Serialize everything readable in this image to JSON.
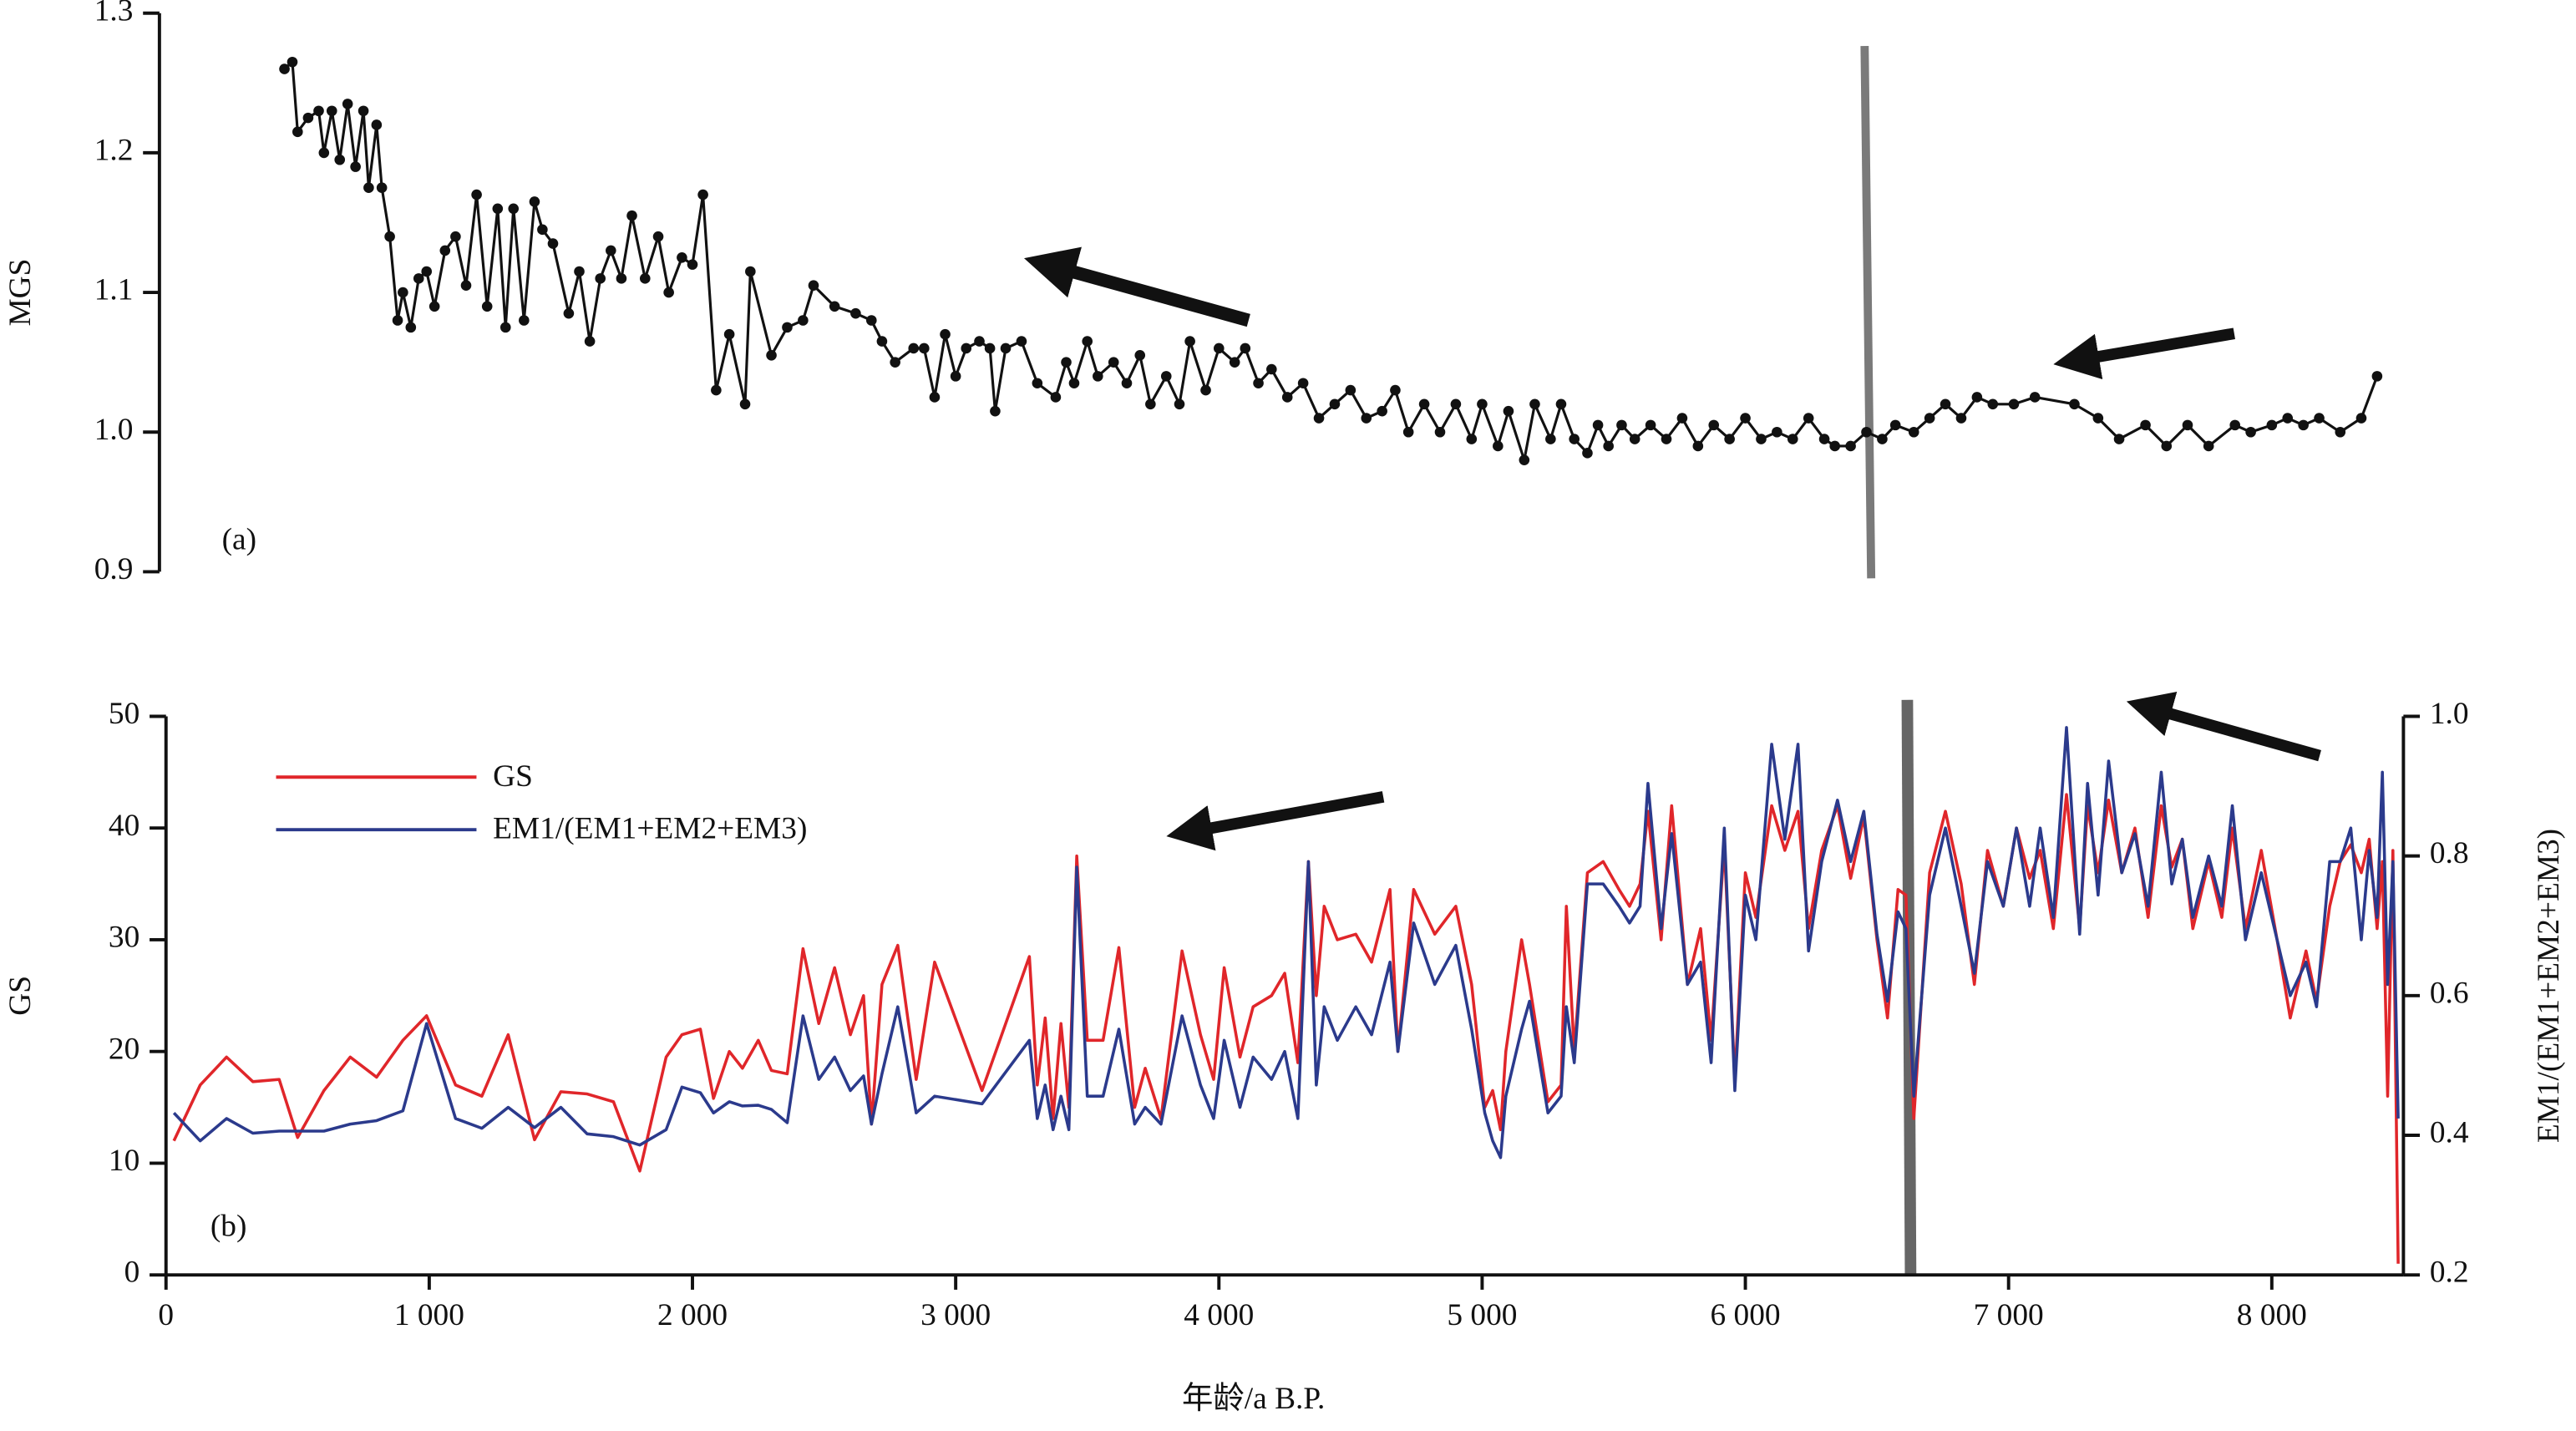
{
  "chart_data": [
    {
      "type": "line",
      "label": "(a)",
      "ylabel": "MGS",
      "xlim": [
        0,
        8500
      ],
      "ylim": [
        0.9,
        1.3
      ],
      "yticks": [
        0.9,
        {
          "value": 1,
          "label": "1.0"
        },
        1.1,
        1.2,
        1.3
      ],
      "x": [
        450,
        480,
        500,
        540,
        580,
        600,
        630,
        660,
        690,
        720,
        750,
        770,
        800,
        820,
        850,
        880,
        900,
        930,
        960,
        990,
        1020,
        1060,
        1100,
        1140,
        1180,
        1220,
        1260,
        1290,
        1320,
        1360,
        1400,
        1430,
        1470,
        1530,
        1570,
        1610,
        1650,
        1690,
        1730,
        1770,
        1820,
        1870,
        1910,
        1960,
        2000,
        2040,
        2090,
        2140,
        2200,
        2220,
        2300,
        2360,
        2420,
        2460,
        2540,
        2620,
        2680,
        2720,
        2770,
        2840,
        2880,
        2920,
        2960,
        3000,
        3040,
        3090,
        3130,
        3150,
        3190,
        3250,
        3310,
        3380,
        3420,
        3450,
        3500,
        3540,
        3600,
        3650,
        3700,
        3740,
        3800,
        3850,
        3890,
        3950,
        4000,
        4060,
        4100,
        4150,
        4200,
        4260,
        4320,
        4380,
        4440,
        4500,
        4560,
        4620,
        4670,
        4720,
        4780,
        4840,
        4900,
        4960,
        5000,
        5060,
        5100,
        5160,
        5200,
        5260,
        5300,
        5350,
        5400,
        5440,
        5480,
        5530,
        5580,
        5640,
        5700,
        5760,
        5820,
        5880,
        5940,
        6000,
        6060,
        6120,
        6180,
        6240,
        6300,
        6340,
        6400,
        6460,
        6520,
        6570,
        6640,
        6700,
        6760,
        6820,
        6880,
        6940,
        7020,
        7100,
        7250,
        7340,
        7420,
        7520,
        7600,
        7680,
        7760,
        7860,
        7920,
        8000,
        8060,
        8120,
        8180,
        8260,
        8340,
        8400
      ],
      "series": [
        {
          "color": "#111111",
          "markers": true,
          "values": [
            1.26,
            1.265,
            1.215,
            1.225,
            1.23,
            1.2,
            1.23,
            1.195,
            1.235,
            1.19,
            1.23,
            1.175,
            1.22,
            1.175,
            1.14,
            1.08,
            1.1,
            1.075,
            1.11,
            1.115,
            1.09,
            1.13,
            1.14,
            1.105,
            1.17,
            1.09,
            1.16,
            1.075,
            1.16,
            1.08,
            1.165,
            1.145,
            1.135,
            1.085,
            1.115,
            1.065,
            1.11,
            1.13,
            1.11,
            1.155,
            1.11,
            1.14,
            1.1,
            1.125,
            1.12,
            1.17,
            1.03,
            1.07,
            1.02,
            1.115,
            1.055,
            1.075,
            1.08,
            1.105,
            1.09,
            1.085,
            1.08,
            1.065,
            1.05,
            1.06,
            1.06,
            1.025,
            1.07,
            1.04,
            1.06,
            1.065,
            1.06,
            1.015,
            1.06,
            1.065,
            1.035,
            1.025,
            1.05,
            1.035,
            1.065,
            1.04,
            1.05,
            1.035,
            1.055,
            1.02,
            1.04,
            1.02,
            1.065,
            1.03,
            1.06,
            1.05,
            1.06,
            1.035,
            1.045,
            1.025,
            1.035,
            1.01,
            1.02,
            1.03,
            1.01,
            1.015,
            1.03,
            1.0,
            1.02,
            1.0,
            1.02,
            0.995,
            1.02,
            0.99,
            1.015,
            0.98,
            1.02,
            0.995,
            1.02,
            0.995,
            0.985,
            1.005,
            0.99,
            1.005,
            0.995,
            1.005,
            0.995,
            1.01,
            0.99,
            1.005,
            0.995,
            1.01,
            0.995,
            1.0,
            0.995,
            1.01,
            0.995,
            0.99,
            0.99,
            1.0,
            0.995,
            1.005,
            1.0,
            1.01,
            1.02,
            1.01,
            1.025,
            1.02,
            1.02,
            1.025,
            1.02,
            1.01,
            0.995,
            1.005,
            0.99,
            1.005,
            0.99,
            1.005,
            1.0,
            1.005,
            1.01,
            1.005,
            1.01,
            1.0,
            1.01,
            1.04
          ]
        }
      ]
    },
    {
      "type": "line",
      "label": "(b)",
      "xlabel": "年龄/a B.P.",
      "ylabel": "GS",
      "y2label": "EM1/(EM1+EM2+EM3)",
      "xlim": [
        0,
        8500
      ],
      "xticks": [
        0,
        {
          "value": 1000,
          "label": "1 000"
        },
        {
          "value": 2000,
          "label": "2 000"
        },
        {
          "value": 3000,
          "label": "3 000"
        },
        {
          "value": 4000,
          "label": "4 000"
        },
        {
          "value": 5000,
          "label": "5 000"
        },
        {
          "value": 6000,
          "label": "6 000"
        },
        {
          "value": 7000,
          "label": "7 000"
        },
        {
          "value": 8000,
          "label": "8 000"
        }
      ],
      "ylim": [
        0,
        50
      ],
      "yticks": [
        0,
        10,
        20,
        30,
        40,
        50
      ],
      "y2lim": [
        0.2,
        1.0
      ],
      "y2ticks": [
        0.2,
        0.4,
        0.6,
        0.8,
        {
          "value": 1,
          "label": "1.0"
        }
      ],
      "x": [
        30,
        130,
        230,
        330,
        430,
        500,
        600,
        700,
        800,
        900,
        990,
        1100,
        1200,
        1300,
        1400,
        1500,
        1600,
        1700,
        1800,
        1900,
        1960,
        2030,
        2080,
        2140,
        2190,
        2250,
        2300,
        2360,
        2420,
        2480,
        2540,
        2600,
        2650,
        2680,
        2720,
        2780,
        2850,
        2920,
        3100,
        3280,
        3310,
        3340,
        3370,
        3400,
        3430,
        3460,
        3500,
        3560,
        3620,
        3680,
        3720,
        3780,
        3860,
        3930,
        3980,
        4020,
        4080,
        4130,
        4200,
        4250,
        4300,
        4340,
        4370,
        4400,
        4450,
        4520,
        4580,
        4650,
        4680,
        4740,
        4820,
        4900,
        4960,
        5010,
        5040,
        5070,
        5090,
        5150,
        5180,
        5250,
        5300,
        5320,
        5350,
        5400,
        5460,
        5520,
        5560,
        5600,
        5630,
        5680,
        5720,
        5780,
        5830,
        5870,
        5920,
        5960,
        6000,
        6040,
        6100,
        6150,
        6200,
        6240,
        6290,
        6350,
        6400,
        6450,
        6500,
        6540,
        6580,
        6610,
        6640,
        6700,
        6760,
        6820,
        6870,
        6920,
        6980,
        7030,
        7080,
        7120,
        7170,
        7220,
        7270,
        7300,
        7340,
        7380,
        7430,
        7480,
        7530,
        7580,
        7620,
        7660,
        7700,
        7760,
        7810,
        7850,
        7900,
        7960,
        8020,
        8070,
        8130,
        8170,
        8220,
        8260,
        8300,
        8340,
        8370,
        8400,
        8420,
        8440,
        8460,
        8480
      ],
      "series": [
        {
          "name": "GS",
          "color": "#e0262a",
          "values": [
            12,
            17,
            19.5,
            17.3,
            17.5,
            12.3,
            16.5,
            19.5,
            17.7,
            21,
            23.2,
            17,
            16,
            21.5,
            12.1,
            16.4,
            16.2,
            15.5,
            9.3,
            19.5,
            21.5,
            22,
            15.8,
            20,
            18.5,
            21,
            18.3,
            18,
            29.2,
            22.5,
            27.5,
            21.5,
            25,
            13.5,
            26,
            29.5,
            17.5,
            28,
            16.5,
            28.5,
            17,
            23,
            14,
            22.5,
            15,
            37.5,
            21,
            21,
            29.3,
            15,
            18.5,
            14,
            29,
            21.5,
            17.5,
            27.5,
            19.5,
            24,
            25,
            27,
            19,
            37,
            25,
            33,
            30,
            30.5,
            28,
            34.5,
            20,
            34.5,
            30.5,
            33,
            26,
            15,
            16.5,
            13,
            20,
            30,
            26,
            15.5,
            17,
            33,
            20,
            36,
            37,
            34.5,
            33,
            35,
            41.5,
            30,
            42,
            26,
            31,
            21,
            38.5,
            17.5,
            36,
            32,
            42,
            38,
            41.5,
            31,
            38,
            42,
            35.5,
            41,
            30,
            23,
            34.5,
            34,
            14,
            36,
            41.5,
            35,
            26,
            38,
            33,
            40,
            35.5,
            38,
            31,
            43,
            31,
            42,
            36,
            42.5,
            36,
            40,
            32,
            42,
            36.5,
            39,
            31,
            37,
            32,
            40,
            31,
            38,
            30,
            23,
            29,
            24.5,
            33,
            37,
            38.5,
            36,
            39,
            31,
            37,
            16,
            38,
            1
          ]
        },
        {
          "name": "EM1/(EM1+EM2+EM3)",
          "color": "#2b3a8c",
          "axis": "y2",
          "values": [
            0.432,
            0.392,
            0.424,
            0.403,
            0.406,
            0.406,
            0.406,
            0.416,
            0.421,
            0.435,
            0.56,
            0.424,
            0.41,
            0.44,
            0.411,
            0.44,
            0.402,
            0.398,
            0.386,
            0.408,
            0.469,
            0.461,
            0.432,
            0.448,
            0.442,
            0.443,
            0.437,
            0.418,
            0.571,
            0.48,
            0.512,
            0.464,
            0.485,
            0.416,
            0.488,
            0.584,
            0.432,
            0.456,
            0.445,
            0.536,
            0.424,
            0.472,
            0.408,
            0.456,
            0.408,
            0.784,
            0.456,
            0.456,
            0.552,
            0.416,
            0.44,
            0.416,
            0.571,
            0.472,
            0.424,
            0.536,
            0.44,
            0.512,
            0.48,
            0.52,
            0.424,
            0.792,
            0.472,
            0.584,
            0.536,
            0.584,
            0.544,
            0.648,
            0.52,
            0.704,
            0.616,
            0.672,
            0.552,
            0.432,
            0.392,
            0.368,
            0.456,
            0.552,
            0.592,
            0.432,
            0.456,
            0.584,
            0.504,
            0.76,
            0.76,
            0.728,
            0.704,
            0.728,
            0.904,
            0.696,
            0.832,
            0.616,
            0.648,
            0.504,
            0.84,
            0.464,
            0.744,
            0.68,
            0.96,
            0.824,
            0.96,
            0.664,
            0.792,
            0.88,
            0.792,
            0.864,
            0.688,
            0.592,
            0.72,
            0.696,
            0.456,
            0.744,
            0.84,
            0.728,
            0.632,
            0.792,
            0.728,
            0.84,
            0.728,
            0.84,
            0.712,
            0.984,
            0.688,
            0.904,
            0.744,
            0.936,
            0.776,
            0.832,
            0.728,
            0.92,
            0.76,
            0.824,
            0.712,
            0.8,
            0.728,
            0.872,
            0.68,
            0.776,
            0.68,
            0.6,
            0.648,
            0.584,
            0.792,
            0.792,
            0.84,
            0.68,
            0.808,
            0.712,
            0.92,
            0.616,
            0.792,
            0.424
          ]
        }
      ]
    }
  ]
}
